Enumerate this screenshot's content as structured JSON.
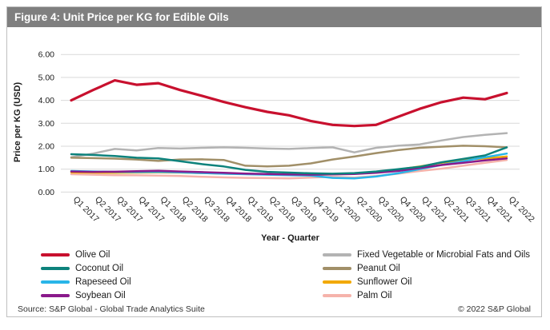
{
  "figure": {
    "title": "Figure 4: Unit Price per KG for Edible Oils",
    "title_bar_color": "#7f7f7f"
  },
  "footer": {
    "source": "Source: S&P Global - Global Trade Analytics Suite",
    "copyright": "© 2022 S&P Global"
  },
  "chart_data": {
    "type": "line",
    "title": "Figure 4: Unit Price per KG for Edible Oils",
    "xlabel": "Year - Quarter",
    "ylabel": "Price per KG (USD)",
    "ylim": [
      0,
      6
    ],
    "ytick_labels": [
      "0.00",
      "1.00",
      "2.00",
      "3.00",
      "4.00",
      "5.00",
      "6.00"
    ],
    "grid": "horizontal",
    "grid_color": "#d9d9d9",
    "legend_position": "bottom",
    "categories": [
      "Q1 2017",
      "Q2 2017",
      "Q3 2017",
      "Q4 2017",
      "Q1 2018",
      "Q2 2018",
      "Q3 2018",
      "Q4 2018",
      "Q1 2019",
      "Q2 2019",
      "Q3 2019",
      "Q4 2019",
      "Q1 2020",
      "Q2 2020",
      "Q3 2020",
      "Q4 2020",
      "Q1 2021",
      "Q2 2021",
      "Q3 2021",
      "Q4 2021",
      "Q1 2022"
    ],
    "series": [
      {
        "name": "Olive Oil",
        "color": "#c8102e",
        "values": [
          4.0,
          4.45,
          4.87,
          4.68,
          4.75,
          4.45,
          4.2,
          3.93,
          3.7,
          3.5,
          3.35,
          3.1,
          2.93,
          2.88,
          2.93,
          3.28,
          3.63,
          3.92,
          4.12,
          4.05,
          4.32
        ]
      },
      {
        "name": "Coconut Oil",
        "color": "#0d827c",
        "values": [
          1.65,
          1.62,
          1.57,
          1.5,
          1.47,
          1.35,
          1.22,
          1.12,
          0.97,
          0.88,
          0.85,
          0.82,
          0.8,
          0.83,
          0.9,
          1.0,
          1.1,
          1.3,
          1.45,
          1.6,
          1.95
        ]
      },
      {
        "name": "Rapeseed Oil",
        "color": "#29b5e8",
        "values": [
          0.92,
          0.9,
          0.88,
          0.87,
          0.88,
          0.86,
          0.83,
          0.8,
          0.78,
          0.76,
          0.74,
          0.72,
          0.62,
          0.6,
          0.68,
          0.82,
          1.0,
          1.18,
          1.35,
          1.52,
          1.68
        ]
      },
      {
        "name": "Soybean Oil",
        "color": "#8a1a8b",
        "values": [
          0.9,
          0.88,
          0.89,
          0.91,
          0.93,
          0.9,
          0.87,
          0.84,
          0.81,
          0.79,
          0.77,
          0.76,
          0.77,
          0.79,
          0.84,
          0.92,
          1.05,
          1.18,
          1.28,
          1.38,
          1.47
        ]
      },
      {
        "name": "Fixed Vegetable or Microbial Fats and Oils",
        "color": "#b3b3b3",
        "values": [
          1.52,
          1.68,
          1.88,
          1.82,
          1.92,
          1.9,
          1.93,
          1.95,
          1.93,
          1.9,
          1.88,
          1.92,
          1.95,
          1.73,
          1.93,
          2.02,
          2.08,
          2.25,
          2.4,
          2.5,
          2.57
        ]
      },
      {
        "name": "Peanut Oil",
        "color": "#a18f68",
        "values": [
          1.5,
          1.48,
          1.46,
          1.42,
          1.36,
          1.42,
          1.43,
          1.4,
          1.15,
          1.12,
          1.15,
          1.25,
          1.42,
          1.55,
          1.7,
          1.83,
          1.93,
          1.98,
          2.02,
          2.0,
          1.95
        ]
      },
      {
        "name": "Sunflower Oil",
        "color": "#f2a900",
        "values": [
          0.86,
          0.85,
          0.84,
          0.85,
          0.86,
          0.85,
          0.83,
          0.81,
          0.79,
          0.77,
          0.76,
          0.75,
          0.77,
          0.81,
          0.88,
          0.98,
          1.12,
          1.28,
          1.4,
          1.47,
          1.55
        ]
      },
      {
        "name": "Palm Oil",
        "color": "#f5b3ab",
        "values": [
          0.78,
          0.76,
          0.74,
          0.73,
          0.72,
          0.7,
          0.67,
          0.64,
          0.62,
          0.61,
          0.6,
          0.63,
          0.67,
          0.63,
          0.7,
          0.8,
          0.92,
          1.02,
          1.15,
          1.28,
          1.4
        ]
      }
    ]
  }
}
